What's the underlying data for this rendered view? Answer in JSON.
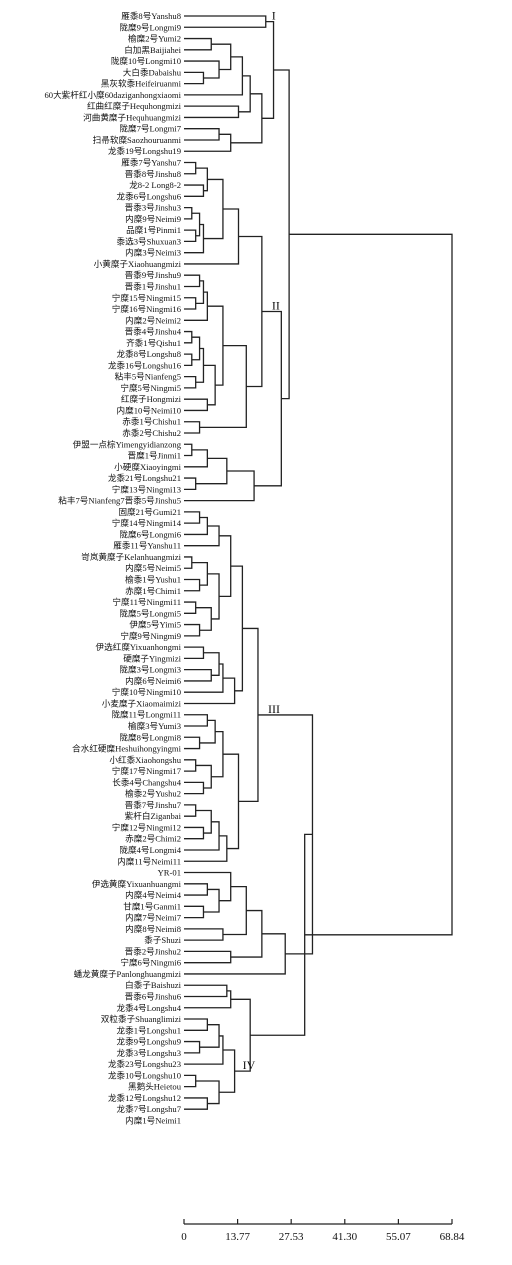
{
  "axis": {
    "ticks": [
      0,
      13.77,
      27.53,
      41.3,
      55.07,
      68.84
    ],
    "tick_labels": [
      "0",
      "13.77",
      "27.53",
      "41.30",
      "55.07",
      "68.84"
    ],
    "max": 68.84
  },
  "clusters": [
    "I",
    "II",
    "III",
    "IV"
  ],
  "leaves": [
    "雁黍8号Yanshu8",
    "陇糜9号Longmi9",
    "榆糜2号Yumi2",
    "白加黑Baijiahei",
    "陇糜10号Longmi10",
    "大白黍Dabaishu",
    "黑灰软黍Heifeiruanmi",
    "60大紫杆红小糜60daziganhongxiaomi",
    "红曲红糜子Hequhongmizi",
    "河曲黄糜子Hequhuangmizi",
    "陇糜7号Longmi7",
    "扫帚软糜Saozhouruanmi",
    "龙黍19号Longshu19",
    "雁黍7号Yanshu7",
    "晋黍8号Jinshu8",
    "龙8-2 Long8-2",
    "龙黍6号Longshu6",
    "晋黍3号Jinshu3",
    "内糜9号Neimi9",
    "品糜1号Pinmi1",
    "黍选3号Shuxuan3",
    "内糜3号Neimi3",
    "小黄糜子Xiaohuangmizi",
    "晋黍9号Jinshu9",
    "晋黍1号Jinshu1",
    "宁糜15号Ningmi15",
    "宁糜16号Ningmi16",
    "内糜2号Neimi2",
    "晋黍4号Jinshu4",
    "齐黍1号Qishu1",
    "龙黍8号Longshu8",
    "龙黍16号Longshu16",
    "粘丰5号Nianfeng5",
    "宁糜5号Ningmi5",
    "红糜子Hongmizi",
    "内糜10号Neimi10",
    "赤黍1号Chishu1",
    "赤黍2号Chishu2",
    "伊盟一点棕Yimengyidianzong",
    "晋糜1号Jinmi1",
    "小硬糜Xiaoyingmi",
    "龙黍21号Longshu21",
    "宁糜13号Ningmi13",
    "粘丰7号Nianfeng7晋黍5号Jinshu5",
    "固糜21号Gumi21",
    "宁糜14号Ningmi14",
    "陇糜6号Longmi6",
    "雁黍11号Yanshu11",
    "岢岚黄糜子Kelanhuangmizi",
    "内糜5号Neimi5",
    "榆黍1号Yushu1",
    "赤糜1号Chimi1",
    "宁糜11号Ningmi11",
    "陇糜5号Longmi5",
    "伊糜5号Yimi5",
    "宁糜9号Ningmi9",
    "伊选红糜Yixuanhongmi",
    "硬糜子Yingmizi",
    "陇糜3号Longmi3",
    "内糜6号Neimi6",
    "宁糜10号Ningmi10",
    "小麦糜子Xiaomaimizi",
    "陇糜11号Longmi11",
    "榆糜3号Yumi3",
    "陇糜8号Longmi8",
    "合水红硬糜Heshuihongyingmi",
    "小红黍Xiaohongshu",
    "宁糜17号Ningmi17",
    "长黍4号Changshu4",
    "榆黍2号Yushu2",
    "晋黍7号Jinshu7",
    "紫杆白Ziganbai",
    "宁糜12号Ningmi12",
    "赤糜2号Chimi2",
    "陇糜4号Longmi4",
    "内糜11号Neimi11",
    "YR-01",
    "伊选黄糜Yixuanhuangmi",
    "内糜4号Neimi4",
    "甘糜1号Ganmi1",
    "内糜7号Neimi7",
    "内糜8号Neimi8",
    "黍子Shuzi",
    "晋黍2号Jinshu2",
    "宁糜6号Ningmi6",
    "蟠龙黄糜子Panlonghuangmizi",
    "白黍子Baishuzi",
    "晋黍6号Jinshu6",
    "龙黍4号Longshu4",
    "双粒黍子Shuanglimizi",
    "龙黍1号Longshu1",
    "龙黍9号Longshu9",
    "龙黍3号Longshu3",
    "龙黍23号Longshu23",
    "龙黍10号Longshu10",
    "黑鹅头Heietou",
    "龙黍12号Longshu12",
    "龙黍7号Longshu7",
    "内糜1号Neimi1"
  ]
}
